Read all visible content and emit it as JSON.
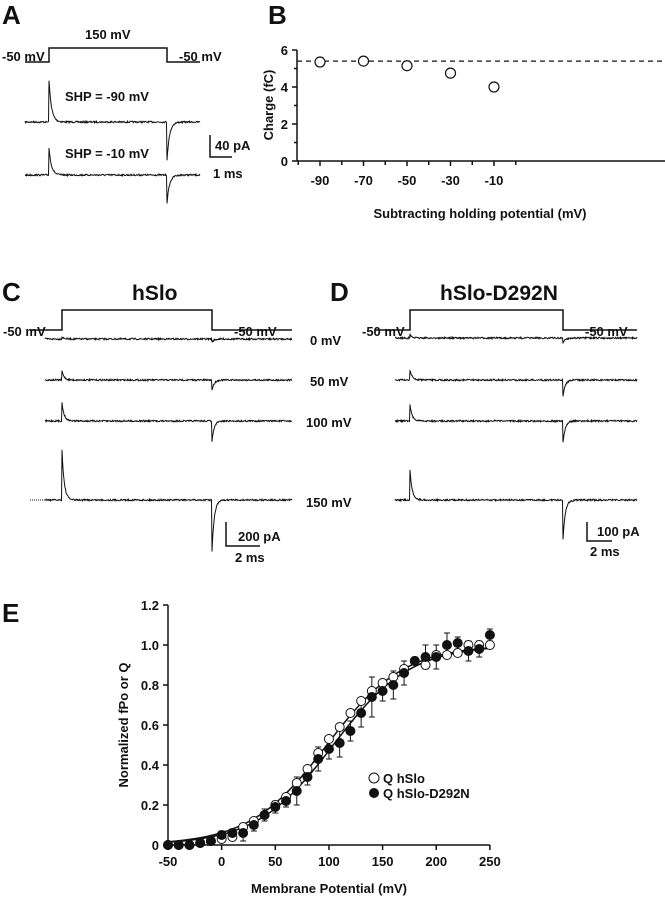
{
  "panels": {
    "A": {
      "letter": "A",
      "protocol": {
        "hold_left": "-50 mV",
        "step": "150 mV",
        "hold_right": "-50 mV"
      },
      "traces": [
        "SHP =  -90 mV",
        "SHP =  -10 mV"
      ],
      "scale": {
        "current": "40 pA",
        "time": "1 ms"
      }
    },
    "B": {
      "letter": "B"
    },
    "C": {
      "letter": "C",
      "title": "hSlo",
      "protocol": {
        "hold_left": "-50 mV",
        "hold_right": "-50 mV"
      },
      "traces": [
        "0 mV",
        "50 mV",
        "100 mV",
        "150 mV"
      ],
      "scale": {
        "current": "200 pA",
        "time": "2 ms"
      }
    },
    "D": {
      "letter": "D",
      "title": "hSlo-D292N",
      "protocol": {
        "hold_left": "-50 mV",
        "hold_right": "-50 mV"
      },
      "scale": {
        "current": "100 pA",
        "time": "2 ms"
      }
    },
    "E": {
      "letter": "E"
    }
  },
  "chart_data": [
    {
      "panel": "B",
      "type": "scatter",
      "xlabel": "Subtracting holding potential (mV)",
      "ylabel": "Charge (fC)",
      "xticks": [
        -90,
        -70,
        -50,
        -30,
        -10
      ],
      "yticks": [
        0,
        2,
        4,
        6
      ],
      "ylim": [
        0,
        6
      ],
      "x": [
        -90,
        -70,
        -50,
        -30,
        -10
      ],
      "y": [
        5.35,
        5.4,
        5.15,
        4.75,
        4.0
      ],
      "reference_line": 5.4,
      "marker": "open-circle"
    },
    {
      "panel": "E",
      "type": "scatter",
      "xlabel": "Membrane Potential (mV)",
      "ylabel": "Normalized fPo or Q",
      "xticks": [
        -50,
        0,
        50,
        100,
        150,
        200,
        250
      ],
      "yticks": [
        0,
        0.2,
        0.4,
        0.6,
        0.8,
        1.0,
        1.2
      ],
      "ytick_labels": [
        "0",
        "0.2",
        "0.4",
        "0.6",
        "0.8",
        "1.0",
        "1.2"
      ],
      "xlim": [
        -50,
        250
      ],
      "ylim": [
        0,
        1.2
      ],
      "legend": "right",
      "x": [
        -50,
        -40,
        -30,
        -20,
        -10,
        0,
        10,
        20,
        30,
        40,
        50,
        60,
        70,
        80,
        90,
        100,
        110,
        120,
        130,
        140,
        150,
        160,
        170,
        180,
        190,
        200,
        210,
        220,
        230,
        240,
        250
      ],
      "series": [
        {
          "name": "Q  hSlo",
          "marker": "open-circle",
          "values": [
            0,
            0,
            0,
            0.01,
            0.02,
            0.03,
            0.04,
            0.09,
            0.12,
            0.15,
            0.2,
            0.24,
            0.31,
            0.38,
            0.46,
            0.53,
            0.59,
            0.66,
            0.72,
            0.77,
            0.81,
            0.84,
            0.88,
            0.92,
            0.9,
            0.95,
            0.95,
            0.96,
            1.0,
            1.0,
            1.0
          ],
          "fit": {
            "v_half": 98,
            "slope": 36
          }
        },
        {
          "name": "Q  hSlo-D292N",
          "marker": "filled-circle",
          "values": [
            0,
            0,
            0,
            0.01,
            0.02,
            0.05,
            0.06,
            0.06,
            0.1,
            0.15,
            0.19,
            0.22,
            0.27,
            0.34,
            0.43,
            0.48,
            0.51,
            0.57,
            0.66,
            0.74,
            0.77,
            0.8,
            0.86,
            0.92,
            0.94,
            0.94,
            1.0,
            1.01,
            0.97,
            0.98,
            1.05
          ],
          "error": [
            0,
            0,
            0,
            0,
            0.01,
            0.02,
            0.02,
            0.04,
            0.03,
            0.03,
            0.03,
            0.03,
            0.07,
            0.04,
            0.06,
            0.05,
            0.07,
            0.05,
            0.07,
            0.1,
            0.05,
            0.07,
            0.06,
            0.02,
            0.06,
            0.06,
            0.06,
            0.03,
            0.05,
            0.04,
            0.03
          ],
          "fit": {
            "v_half": 104,
            "slope": 36
          }
        }
      ]
    }
  ]
}
